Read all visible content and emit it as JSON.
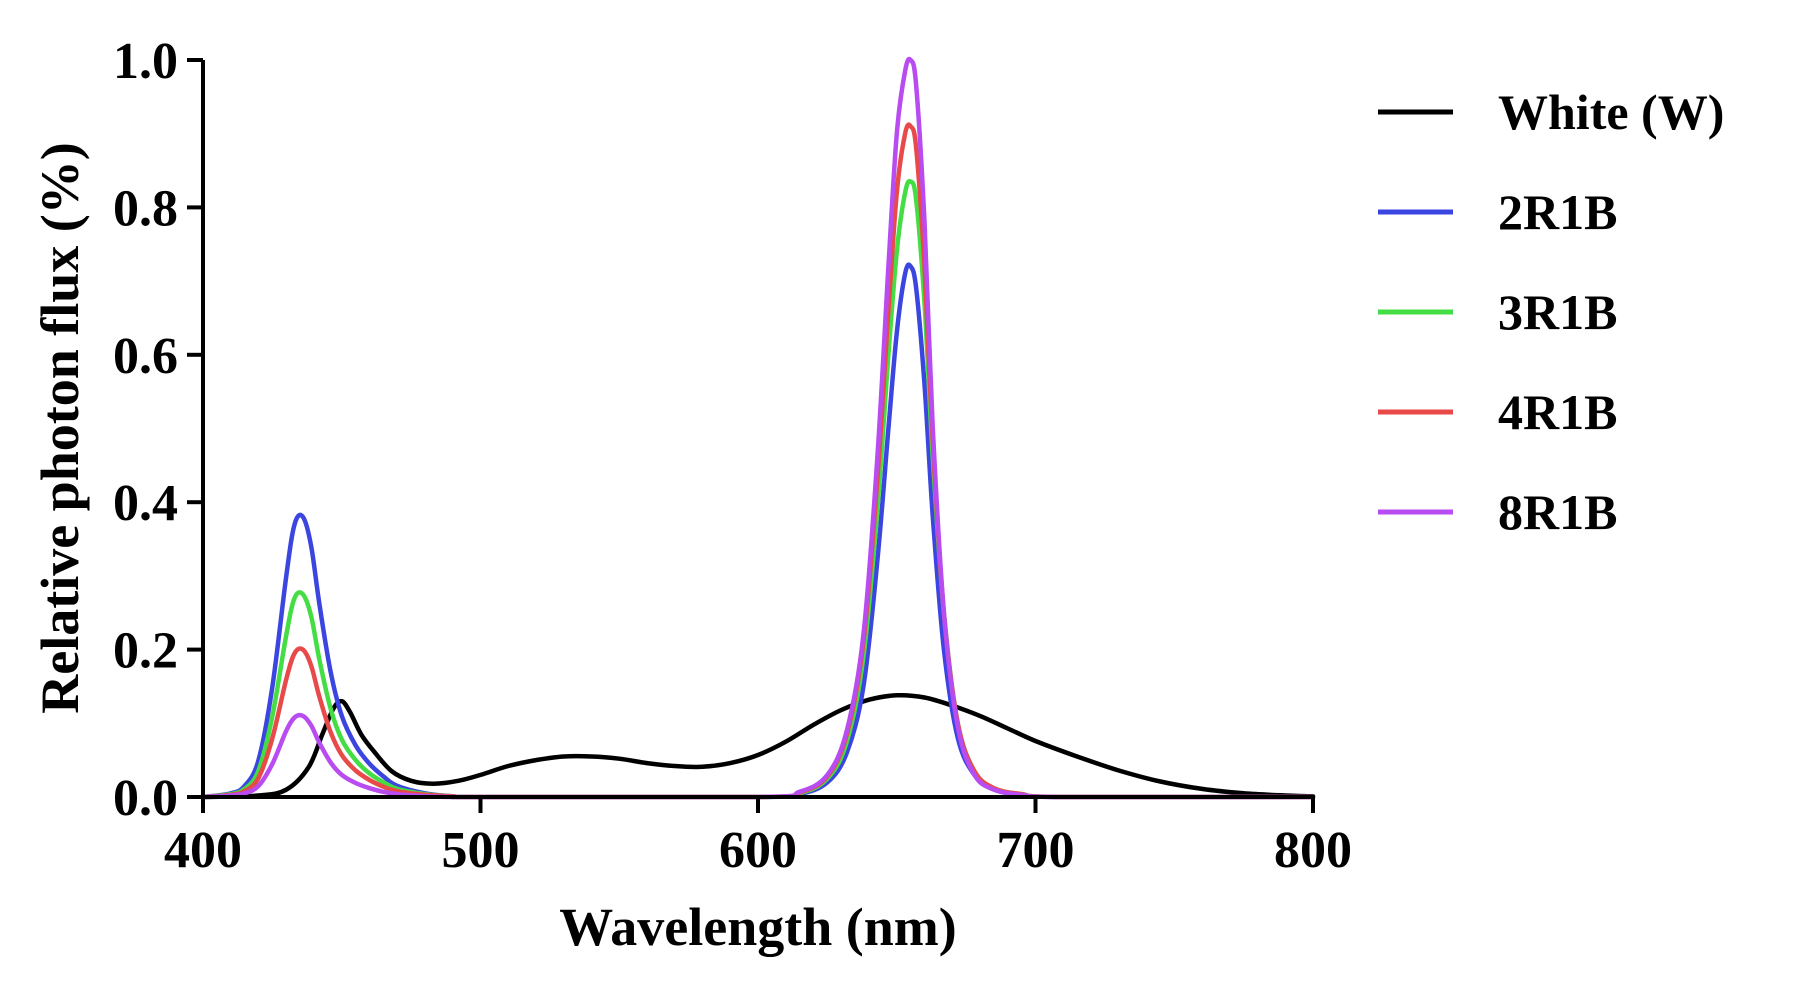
{
  "chart_data": {
    "type": "line",
    "title": "",
    "xlabel": "Wavelength (nm)",
    "ylabel": "Relative photon flux (%)",
    "xlim": [
      400,
      800
    ],
    "ylim": [
      0,
      1.0
    ],
    "xticks": [
      400,
      500,
      600,
      700,
      800
    ],
    "yticks": [
      0.0,
      0.2,
      0.4,
      0.6,
      0.8,
      1.0
    ],
    "xtick_labels": [
      "400",
      "500",
      "600",
      "700",
      "800"
    ],
    "ytick_labels": [
      "0.0",
      "0.2",
      "0.4",
      "0.6",
      "0.8",
      "1.0"
    ],
    "legend_position": "right",
    "series": [
      {
        "name": "White (W)",
        "color": "#000000",
        "x": [
          400,
          420,
          430,
          438,
          443,
          447,
          450,
          453,
          457,
          462,
          468,
          475,
          483,
          492,
          500,
          510,
          520,
          530,
          540,
          550,
          560,
          570,
          580,
          590,
          600,
          610,
          620,
          630,
          640,
          650,
          660,
          670,
          680,
          690,
          700,
          715,
          730,
          745,
          760,
          775,
          790,
          800
        ],
        "y": [
          0.0,
          0.002,
          0.01,
          0.04,
          0.085,
          0.12,
          0.13,
          0.115,
          0.085,
          0.06,
          0.035,
          0.022,
          0.018,
          0.022,
          0.03,
          0.042,
          0.05,
          0.055,
          0.055,
          0.052,
          0.046,
          0.042,
          0.041,
          0.046,
          0.057,
          0.075,
          0.098,
          0.118,
          0.132,
          0.138,
          0.135,
          0.124,
          0.11,
          0.093,
          0.076,
          0.055,
          0.036,
          0.021,
          0.011,
          0.005,
          0.002,
          0.001
        ]
      },
      {
        "name": "2R1B",
        "color": "#3b45e0",
        "x": [
          400,
          410,
          415,
          420,
          425,
          430,
          433,
          436,
          439,
          442,
          446,
          450,
          455,
          460,
          465,
          470,
          480,
          490,
          500,
          600,
          615,
          625,
          632,
          638,
          643,
          647,
          650,
          653,
          655,
          657,
          660,
          663,
          667,
          672,
          678,
          685,
          695,
          710,
          800
        ],
        "y": [
          0.0,
          0.005,
          0.015,
          0.05,
          0.15,
          0.3,
          0.37,
          0.38,
          0.34,
          0.26,
          0.17,
          0.11,
          0.07,
          0.045,
          0.028,
          0.015,
          0.005,
          0.001,
          0.0,
          0.0,
          0.004,
          0.02,
          0.06,
          0.15,
          0.32,
          0.5,
          0.63,
          0.71,
          0.72,
          0.69,
          0.56,
          0.38,
          0.2,
          0.08,
          0.03,
          0.01,
          0.003,
          0.0,
          0.0
        ]
      },
      {
        "name": "3R1B",
        "color": "#44dd44",
        "x": [
          400,
          410,
          415,
          420,
          425,
          430,
          433,
          436,
          439,
          442,
          446,
          450,
          455,
          460,
          465,
          470,
          480,
          490,
          500,
          600,
          615,
          625,
          632,
          638,
          643,
          647,
          650,
          653,
          655,
          657,
          660,
          663,
          667,
          672,
          678,
          685,
          695,
          710,
          800
        ],
        "y": [
          0.0,
          0.004,
          0.011,
          0.036,
          0.11,
          0.22,
          0.27,
          0.275,
          0.245,
          0.185,
          0.12,
          0.078,
          0.05,
          0.032,
          0.02,
          0.011,
          0.004,
          0.001,
          0.0,
          0.0,
          0.005,
          0.025,
          0.075,
          0.19,
          0.39,
          0.6,
          0.74,
          0.82,
          0.835,
          0.81,
          0.67,
          0.46,
          0.25,
          0.1,
          0.035,
          0.012,
          0.004,
          0.0,
          0.0
        ]
      },
      {
        "name": "4R1B",
        "color": "#e84a4a",
        "x": [
          400,
          410,
          415,
          420,
          425,
          430,
          433,
          436,
          439,
          442,
          446,
          450,
          455,
          460,
          465,
          470,
          480,
          490,
          500,
          600,
          615,
          625,
          632,
          638,
          643,
          647,
          650,
          653,
          655,
          657,
          660,
          663,
          667,
          672,
          678,
          685,
          695,
          710,
          800
        ],
        "y": [
          0.0,
          0.003,
          0.008,
          0.026,
          0.08,
          0.16,
          0.195,
          0.2,
          0.178,
          0.135,
          0.088,
          0.057,
          0.036,
          0.023,
          0.014,
          0.008,
          0.003,
          0.001,
          0.0,
          0.0,
          0.006,
          0.028,
          0.085,
          0.21,
          0.43,
          0.66,
          0.82,
          0.9,
          0.91,
          0.88,
          0.72,
          0.48,
          0.25,
          0.1,
          0.035,
          0.012,
          0.004,
          0.0,
          0.0
        ]
      },
      {
        "name": "8R1B",
        "color": "#b84cf0",
        "x": [
          400,
          410,
          415,
          420,
          425,
          430,
          433,
          436,
          439,
          442,
          446,
          450,
          455,
          460,
          465,
          470,
          480,
          490,
          500,
          600,
          615,
          625,
          632,
          638,
          643,
          647,
          650,
          653,
          655,
          657,
          660,
          663,
          667,
          672,
          678,
          685,
          695,
          710,
          800
        ],
        "y": [
          0.0,
          0.002,
          0.005,
          0.015,
          0.045,
          0.09,
          0.108,
          0.11,
          0.097,
          0.073,
          0.047,
          0.03,
          0.019,
          0.012,
          0.007,
          0.004,
          0.001,
          0.0,
          0.0,
          0.0,
          0.007,
          0.03,
          0.09,
          0.22,
          0.46,
          0.72,
          0.9,
          0.985,
          1.0,
          0.965,
          0.78,
          0.5,
          0.25,
          0.095,
          0.03,
          0.01,
          0.003,
          0.0,
          0.0
        ]
      }
    ]
  }
}
